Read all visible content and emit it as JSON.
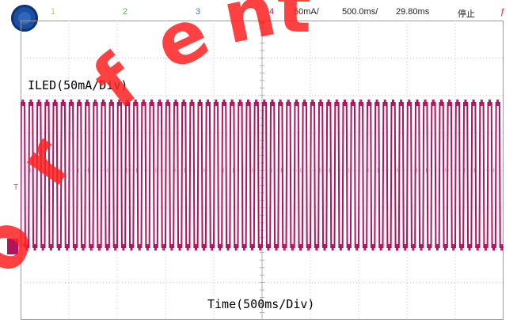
{
  "header": {
    "ch1_label": "1",
    "ch2_label": "2",
    "ch3_label": "3",
    "ch4_label": "4",
    "vertical_scale": "50mA/",
    "time_scale": "500.0ms/",
    "time_offset": "29.80ms",
    "run_state": "停止",
    "edge_symbol": "ƒ"
  },
  "colors": {
    "ch1": "#d6c04a",
    "ch2": "#4fb84f",
    "ch3": "#4c6fd6",
    "ch4": "#b3125c",
    "grid": "#c8c8c8",
    "watermark": "#ff2020"
  },
  "annotations": {
    "signal_label": "ILED(50mA/Div)",
    "time_label": "Time(500ms/Div)"
  },
  "markers": {
    "ground_marker": "4",
    "trigger_marker": "T"
  },
  "chart_data": {
    "type": "line",
    "series": [
      {
        "channel": 4,
        "waveform": "square",
        "cycles": 60,
        "duty": 0.5
      }
    ],
    "xlabel": "Time(500ms/Div)",
    "ylabel": "ILED(50mA/Div)",
    "grid": true
  }
}
